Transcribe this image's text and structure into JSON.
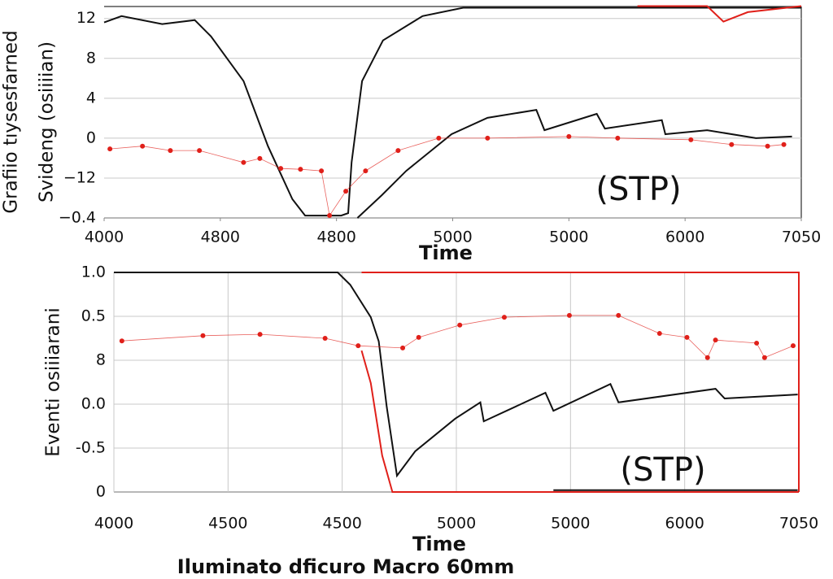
{
  "chart_data": [
    {
      "type": "line",
      "xlabel": "Time",
      "ylabel": [
        "Grafiio tıysesfarned",
        "Svideng (osiiiian)"
      ],
      "annotation": "(STP)",
      "xlim": [
        0,
        6
      ],
      "ylim": [
        0,
        5.3
      ],
      "grid": "y",
      "xticks": [
        {
          "value": 0,
          "label": "4000"
        },
        {
          "value": 1,
          "label": "4800"
        },
        {
          "value": 2,
          "label": "4800"
        },
        {
          "value": 3,
          "label": "5000"
        },
        {
          "value": 4,
          "label": "5000"
        },
        {
          "value": 5,
          "label": "6000"
        },
        {
          "value": 6,
          "label": "7050"
        }
      ],
      "yticks": [
        {
          "value": 0,
          "label": "−0.4"
        },
        {
          "value": 1,
          "label": "−12"
        },
        {
          "value": 2,
          "label": "0"
        },
        {
          "value": 3,
          "label": "4"
        },
        {
          "value": 4,
          "label": "8"
        },
        {
          "value": 5,
          "label": "12"
        }
      ],
      "series": [
        {
          "color": "#111111",
          "markers": false,
          "x": [
            0,
            0.15,
            0.5,
            0.78,
            0.92,
            1.2,
            1.41,
            1.62,
            1.73,
            2.04,
            2.1,
            2.13,
            2.22,
            2.4,
            2.74,
            3.09,
            6
          ],
          "values": [
            4.9,
            5.06,
            4.86,
            4.96,
            4.55,
            3.43,
            1.8,
            0.47,
            0.06,
            0.06,
            0.12,
            1.39,
            3.43,
            4.45,
            5.06,
            5.27,
            5.27
          ]
        },
        {
          "color": "#e0201a",
          "markers": false,
          "x": [
            4.59,
            5.19,
            5.33,
            5.54,
            6
          ],
          "values": [
            5.31,
            5.31,
            4.92,
            5.16,
            5.31
          ]
        },
        {
          "color": "#111111",
          "markers": false,
          "x": [
            2.18,
            2.39,
            2.6,
            2.99,
            3.3,
            3.72,
            3.79,
            4.24,
            4.31,
            4.8,
            4.83,
            5.19,
            5.61,
            5.92
          ],
          "values": [
            0,
            0.57,
            1.18,
            2.1,
            2.51,
            2.71,
            2.2,
            2.61,
            2.24,
            2.45,
            2.1,
            2.2,
            2.0,
            2.04
          ]
        },
        {
          "color": "#e0201a",
          "markers": true,
          "x": [
            0.05,
            0.33,
            0.57,
            0.82,
            1.2,
            1.34,
            1.52,
            1.69,
            1.87,
            1.94,
            2.08,
            2.25,
            2.53,
            2.88,
            3.3,
            4.0,
            4.42,
            5.05,
            5.4,
            5.71,
            5.85
          ],
          "values": [
            1.73,
            1.8,
            1.69,
            1.69,
            1.39,
            1.49,
            1.24,
            1.22,
            1.18,
            0.06,
            0.67,
            1.18,
            1.69,
            2.0,
            2.0,
            2.04,
            2.0,
            1.96,
            1.84,
            1.8,
            1.84
          ]
        }
      ]
    },
    {
      "type": "line",
      "xlabel": "Time",
      "ylabel": [
        "Eventi osiiiarani"
      ],
      "annotation": "(STP)",
      "caption": "Iluminato dficuro Macro 60mm",
      "xlim": [
        0,
        6
      ],
      "ylim": [
        0,
        5
      ],
      "grid": "both",
      "xticks": [
        {
          "value": 0,
          "label": "4000"
        },
        {
          "value": 1,
          "label": "4500"
        },
        {
          "value": 2,
          "label": "4500"
        },
        {
          "value": 3,
          "label": "5000"
        },
        {
          "value": 4,
          "label": "5000"
        },
        {
          "value": 5,
          "label": "6000"
        },
        {
          "value": 6,
          "label": "7050"
        }
      ],
      "yticks": [
        {
          "value": 0,
          "label": "0"
        },
        {
          "value": 1,
          "label": "-0.5"
        },
        {
          "value": 2,
          "label": "0.0"
        },
        {
          "value": 3,
          "label": "8"
        },
        {
          "value": 4,
          "label": "0.5"
        },
        {
          "value": 5,
          "label": "1.0"
        }
      ],
      "series": [
        {
          "color": "#111111",
          "markers": false,
          "x": [
            0,
            1.96,
            2.07,
            2.25,
            2.32,
            2.39,
            2.48,
            2.64,
            2.99,
            3.21,
            3.24,
            3.78,
            3.85,
            4.35,
            4.42,
            5.27,
            5.35,
            5.99
          ],
          "values": [
            5,
            5,
            4.72,
            3.98,
            3.43,
            1.94,
            0.37,
            0.93,
            1.67,
            2.04,
            1.61,
            2.26,
            1.85,
            2.46,
            2.04,
            2.35,
            2.13,
            2.22
          ]
        },
        {
          "color": "#111111",
          "markers": false,
          "x": [
            3.85,
            5.99
          ],
          "values": [
            0.04,
            0.04
          ]
        },
        {
          "color": "#e0201a",
          "markers": false,
          "x": [
            2.17,
            2.25,
            2.35,
            2.44,
            3.85,
            6.0
          ],
          "values": [
            3.22,
            2.48,
            0.83,
            0,
            0,
            0
          ]
        },
        {
          "color": "#e0201a",
          "markers": false,
          "x": [
            2.17,
            6.0,
            6.0
          ],
          "values": [
            5,
            5,
            0
          ]
        },
        {
          "color": "#e0201a",
          "markers": true,
          "x": [
            0.07,
            0.78,
            1.28,
            1.85,
            2.14,
            2.53,
            2.67,
            3.03,
            3.42,
            3.99,
            4.42,
            4.78,
            5.02,
            5.2,
            5.27,
            5.63,
            5.7,
            5.95
          ],
          "values": [
            3.44,
            3.56,
            3.59,
            3.5,
            3.33,
            3.28,
            3.52,
            3.8,
            3.98,
            4.02,
            4.02,
            3.61,
            3.52,
            3.06,
            3.46,
            3.39,
            3.06,
            3.33
          ]
        }
      ]
    }
  ]
}
